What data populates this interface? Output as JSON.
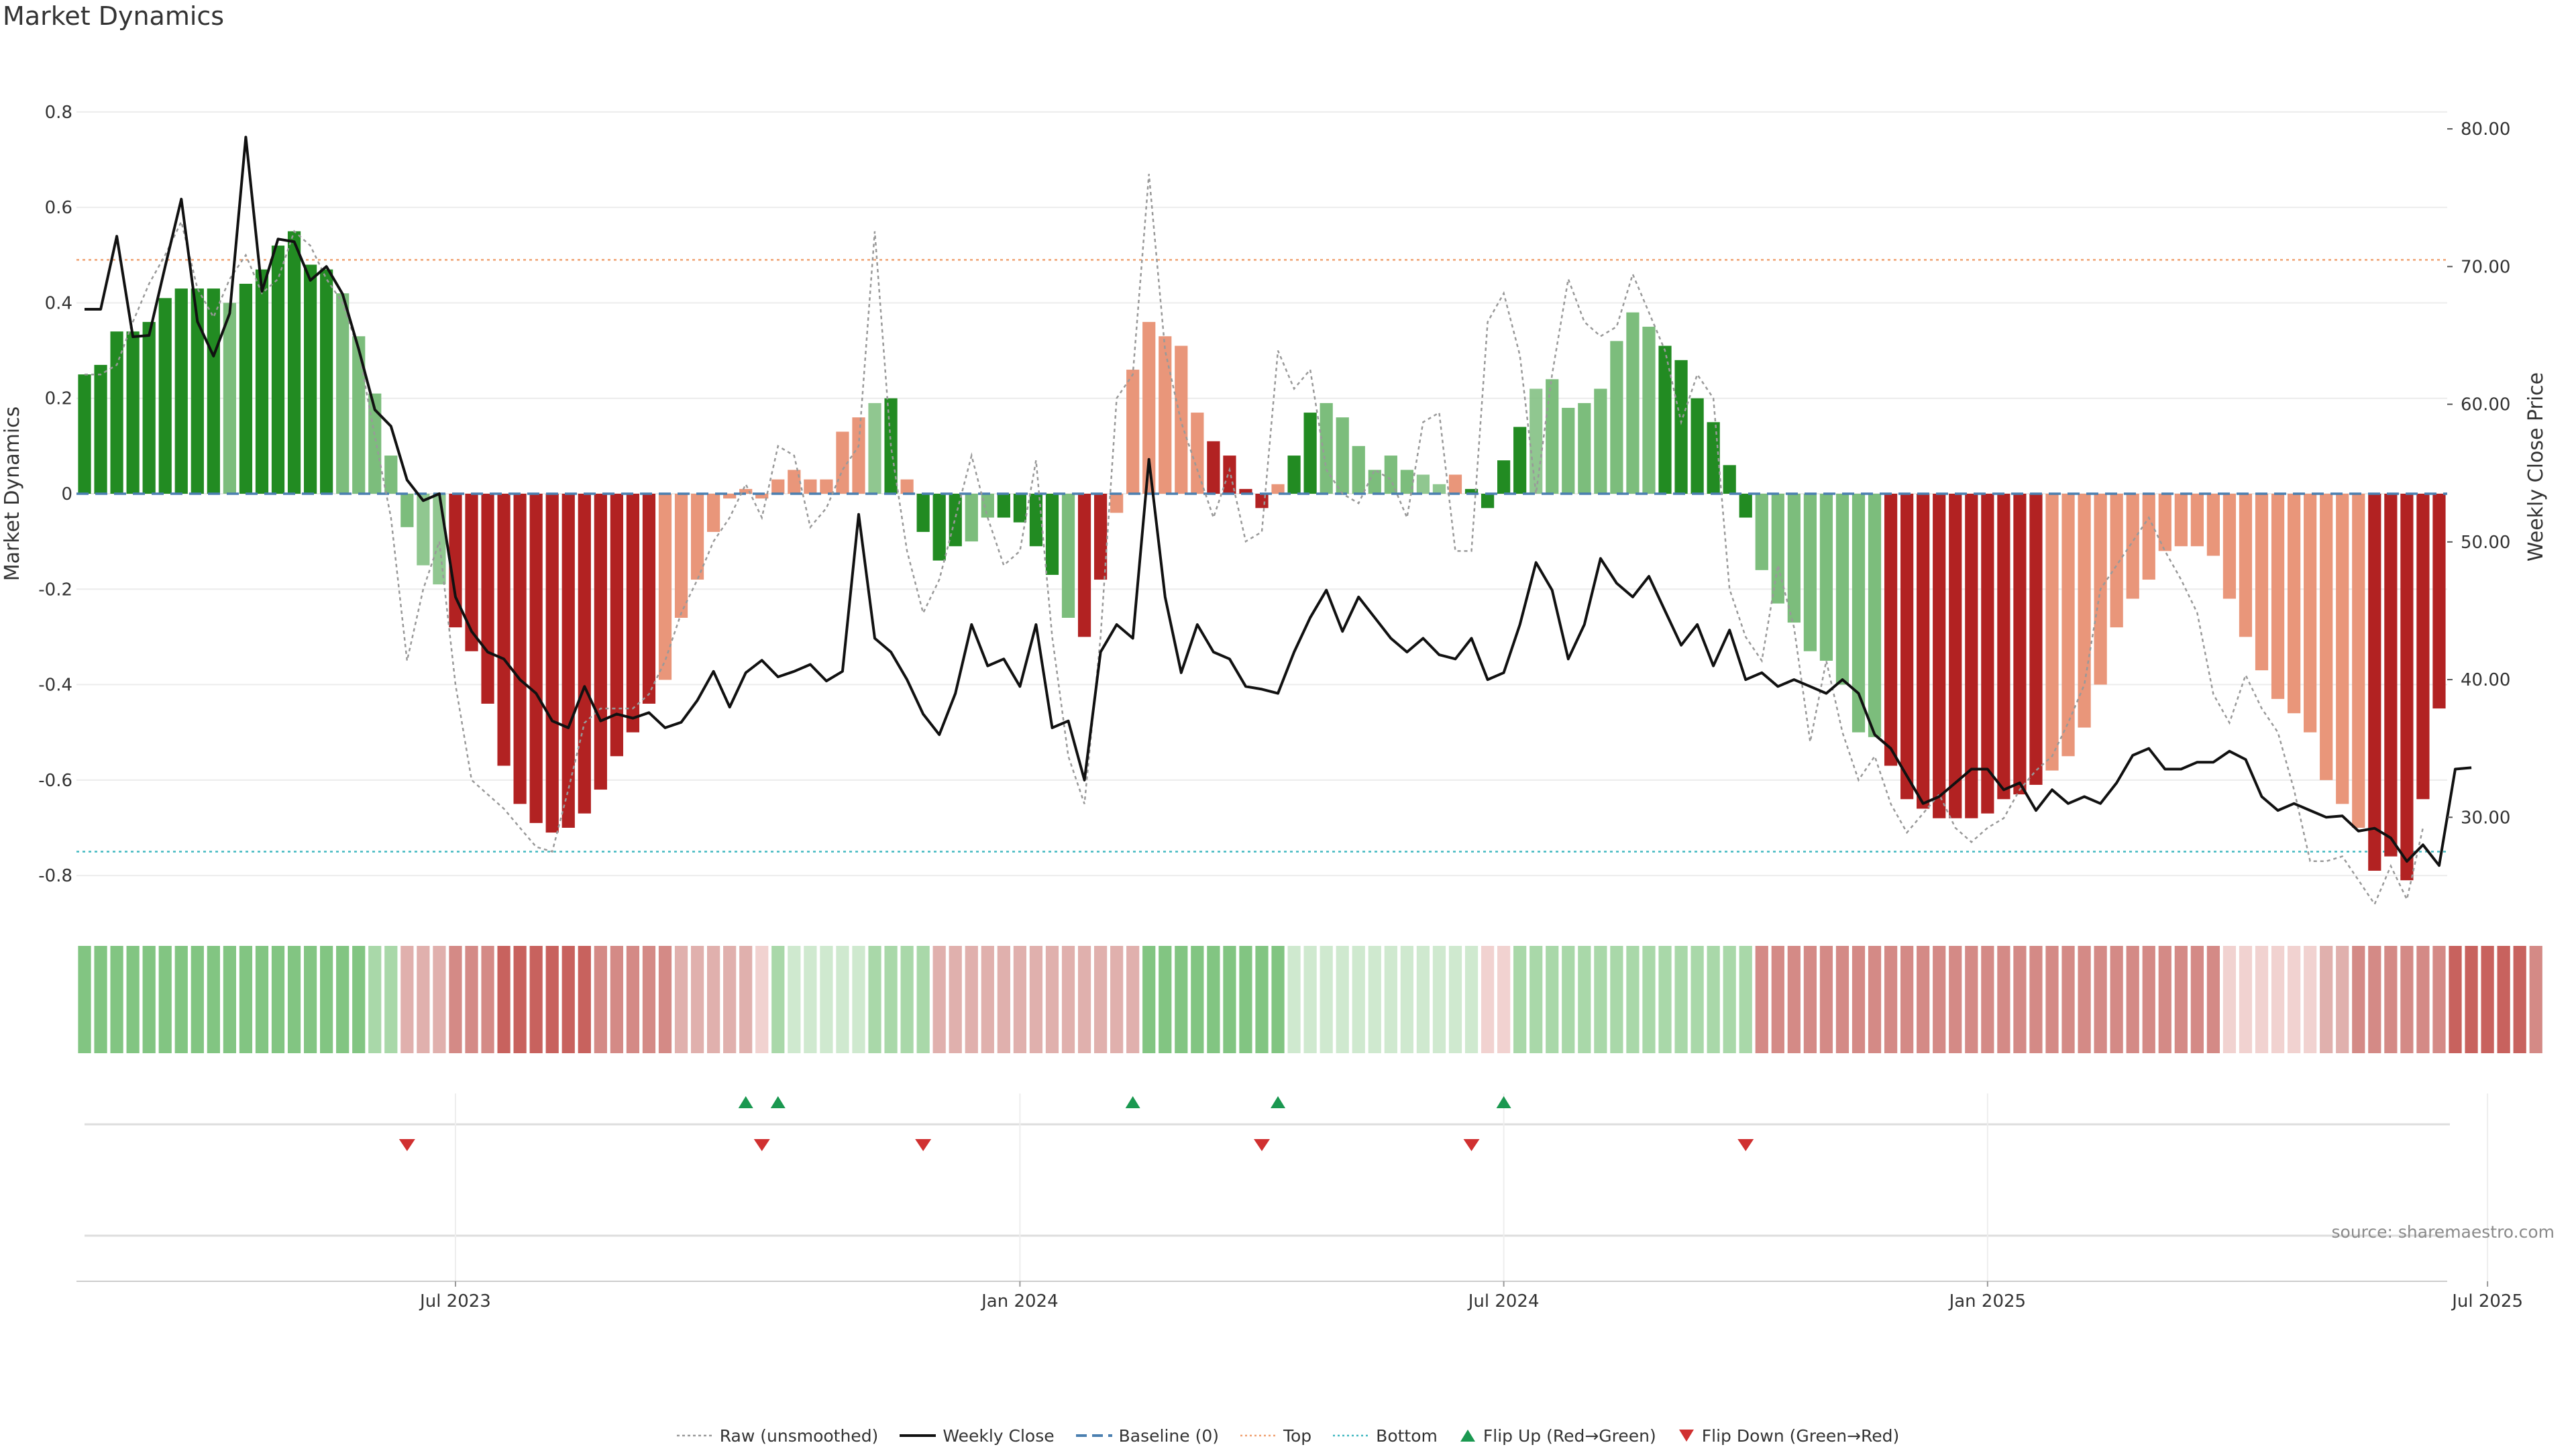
{
  "title": "Market Dynamics",
  "source": "source: sharemaestro.com",
  "chart_data": {
    "type": "bar+line",
    "title": "Market Dynamics",
    "ylabel_left": "Market Dynamics",
    "ylabel_right": "Weekly Close Price",
    "ylim_left": [
      -0.88,
      0.88
    ],
    "ylim_right": [
      23.0,
      84.0
    ],
    "left_ticks": [
      0.8,
      0.6,
      0.4,
      0.2,
      0,
      -0.2,
      -0.4,
      -0.6,
      -0.8
    ],
    "right_ticks": [
      "80.00",
      "70.00",
      "60.00",
      "50.00",
      "40.00",
      "30.00"
    ],
    "x_tick_labels": [
      "Jul 2023",
      "Jan 2024",
      "Jul 2024",
      "Jan 2025",
      "Jul 2025"
    ],
    "x_tick_index": [
      23,
      58,
      88,
      118,
      149
    ],
    "top_level": 0.49,
    "bottom_level": -0.75,
    "baseline": 0,
    "bar_color_codes": "GGGGGGGGGLGGGGGGlllllmmRRRRRRRRRRRRRrrrrrrrrrrrrrmGrGGGlLGGGGlRRrrrrrrRRRRrGGllllllmmrGGGGmlllllllGGGGGGllllllllRRRRRRRRRRrrrrrrrrrrrrrrrrrrrrRRRRRRRRRRRr",
    "dynamics": [
      0.25,
      0.27,
      0.34,
      0.34,
      0.36,
      0.41,
      0.43,
      0.43,
      0.43,
      0.4,
      0.44,
      0.47,
      0.52,
      0.55,
      0.48,
      0.47,
      0.42,
      0.33,
      0.21,
      0.08,
      -0.07,
      -0.15,
      -0.19,
      -0.28,
      -0.33,
      -0.44,
      -0.57,
      -0.65,
      -0.69,
      -0.71,
      -0.7,
      -0.67,
      -0.62,
      -0.55,
      -0.5,
      -0.44,
      -0.39,
      -0.26,
      -0.18,
      -0.08,
      -0.01,
      0.01,
      -0.01,
      0.03,
      0.05,
      0.03,
      0.03,
      0.13,
      0.16,
      0.19,
      0.2,
      0.03,
      -0.08,
      -0.14,
      -0.11,
      -0.1,
      -0.05,
      -0.05,
      -0.06,
      -0.11,
      -0.17,
      -0.26,
      -0.3,
      -0.18,
      -0.04,
      0.26,
      0.36,
      0.33,
      0.31,
      0.17,
      0.11,
      0.08,
      0.01,
      -0.03,
      0.02,
      0.08,
      0.17,
      0.19,
      0.16,
      0.1,
      0.05,
      0.08,
      0.05,
      0.04,
      0.02,
      0.04,
      0.01,
      -0.03,
      0.07,
      0.14,
      0.22,
      0.24,
      0.18,
      0.19,
      0.22,
      0.32,
      0.38,
      0.35,
      0.31,
      0.28,
      0.2,
      0.15,
      0.06,
      -0.05,
      -0.16,
      -0.23,
      -0.27,
      -0.33,
      -0.35,
      -0.4,
      -0.5,
      -0.51,
      -0.57,
      -0.64,
      -0.66,
      -0.68,
      -0.68,
      -0.68,
      -0.67,
      -0.64,
      -0.63,
      -0.61,
      -0.58,
      -0.55,
      -0.49,
      -0.4,
      -0.28,
      -0.22,
      -0.18,
      -0.12,
      -0.11,
      -0.11,
      -0.13,
      -0.22,
      -0.3,
      -0.37,
      -0.43,
      -0.46,
      -0.5,
      -0.6,
      -0.65,
      -0.7,
      -0.79,
      -0.76,
      -0.81,
      -0.64,
      -0.45
    ],
    "raw": [
      0.25,
      0.25,
      0.27,
      0.36,
      0.44,
      0.5,
      0.57,
      0.43,
      0.37,
      0.45,
      0.5,
      0.42,
      0.45,
      0.55,
      0.52,
      0.45,
      0.4,
      0.3,
      0.12,
      -0.05,
      -0.35,
      -0.2,
      -0.1,
      -0.4,
      -0.6,
      -0.63,
      -0.66,
      -0.7,
      -0.74,
      -0.75,
      -0.62,
      -0.48,
      -0.45,
      -0.45,
      -0.45,
      -0.42,
      -0.35,
      -0.25,
      -0.18,
      -0.1,
      -0.05,
      0.02,
      -0.05,
      0.1,
      0.08,
      -0.07,
      -0.03,
      0.05,
      0.1,
      0.55,
      0.1,
      -0.12,
      -0.25,
      -0.18,
      -0.05,
      0.08,
      -0.05,
      -0.15,
      -0.12,
      0.07,
      -0.3,
      -0.55,
      -0.65,
      -0.3,
      0.2,
      0.25,
      0.67,
      0.3,
      0.15,
      0.05,
      -0.05,
      0.05,
      -0.1,
      -0.08,
      0.3,
      0.22,
      0.26,
      0.05,
      0.0,
      -0.02,
      0.05,
      0.03,
      -0.05,
      0.15,
      0.17,
      -0.12,
      -0.12,
      0.36,
      0.42,
      0.29,
      0.0,
      0.25,
      0.45,
      0.36,
      0.33,
      0.35,
      0.46,
      0.38,
      0.3,
      0.15,
      0.25,
      0.2,
      -0.2,
      -0.3,
      -0.35,
      -0.15,
      -0.28,
      -0.52,
      -0.35,
      -0.5,
      -0.6,
      -0.55,
      -0.65,
      -0.71,
      -0.67,
      -0.63,
      -0.7,
      -0.73,
      -0.7,
      -0.68,
      -0.62,
      -0.58,
      -0.55,
      -0.48,
      -0.4,
      -0.2,
      -0.15,
      -0.1,
      -0.05,
      -0.12,
      -0.18,
      -0.25,
      -0.42,
      -0.48,
      -0.38,
      -0.45,
      -0.5,
      -0.62,
      -0.77,
      -0.77,
      -0.76,
      -0.81,
      -0.86,
      -0.78,
      -0.85,
      -0.7
    ],
    "weekly_close": [
      66.9,
      66.9,
      72.2,
      64.9,
      65.0,
      70.0,
      74.9,
      66.0,
      63.5,
      66.6,
      79.4,
      68.2,
      72.0,
      71.8,
      69.0,
      70.0,
      68.0,
      64.0,
      59.6,
      58.4,
      54.5,
      53.0,
      53.5,
      46.0,
      43.5,
      42.0,
      41.5,
      40.0,
      39.0,
      37.0,
      36.5,
      39.5,
      37.0,
      37.5,
      37.2,
      37.6,
      36.5,
      36.9,
      38.5,
      40.6,
      38.0,
      40.5,
      41.4,
      40.2,
      40.6,
      41.1,
      39.9,
      40.6,
      52.0,
      43.0,
      42.0,
      40.0,
      37.5,
      36.0,
      39.0,
      44.0,
      41.0,
      41.5,
      39.5,
      44.0,
      36.5,
      37.0,
      32.7,
      42.0,
      44.0,
      43.0,
      56.0,
      46.0,
      40.5,
      44.0,
      42.0,
      41.5,
      39.5,
      39.3,
      39.0,
      42.0,
      44.5,
      46.5,
      43.5,
      46.0,
      44.5,
      43.0,
      42.0,
      43.0,
      41.8,
      41.5,
      43.0,
      40.0,
      40.5,
      44.0,
      48.5,
      46.5,
      41.5,
      44.0,
      48.8,
      47.0,
      46.0,
      47.5,
      45.0,
      42.5,
      44.0,
      41.0,
      43.6,
      40.0,
      40.5,
      39.5,
      40.0,
      39.5,
      39.0,
      40.0,
      39.0,
      36.0,
      35.0,
      33.0,
      31.0,
      31.5,
      32.5,
      33.5,
      33.5,
      32.0,
      32.5,
      30.5,
      32.0,
      31.0,
      31.5,
      31.0,
      32.5,
      34.5,
      35.0,
      33.5,
      33.5,
      34.0,
      34.0,
      34.8,
      34.2,
      31.5,
      30.5,
      31.0,
      30.5,
      30.0,
      30.1,
      29.0,
      29.2,
      28.5,
      26.8,
      28.0,
      26.5,
      33.5,
      33.6
    ],
    "status_strip": [
      "Mg",
      "Mg",
      "Mg",
      "Mg",
      "Mg",
      "Mg",
      "Mg",
      "Mg",
      "Mg",
      "Mg",
      "Mg",
      "Mg",
      "Mg",
      "Mg",
      "Mg",
      "Mg",
      "Mg",
      "Mg",
      "Lg",
      "Lg",
      "Lr",
      "Lr",
      "Lr",
      "Mr",
      "Mr",
      "Mr",
      "Sr",
      "Sr",
      "Sr",
      "Sr",
      "Sr",
      "Sr",
      "Mr",
      "Mr",
      "Mr",
      "Mr",
      "Mr",
      "Lr",
      "Lr",
      "Lr",
      "Lr",
      "Lr",
      "Vr",
      "Lg",
      "Vg",
      "Vg",
      "Vg",
      "Vg",
      "Vg",
      "Lg",
      "Lg",
      "Lg",
      "Lg",
      "Lr",
      "Lr",
      "Lr",
      "Lr",
      "Lr",
      "Lr",
      "Lr",
      "Lr",
      "Lr",
      "Lr",
      "Lr",
      "Lr",
      "Lr",
      "Mg",
      "Mg",
      "Mg",
      "Mg",
      "Mg",
      "Mg",
      "Mg",
      "Mg",
      "Mg",
      "Vg",
      "Vg",
      "Vg",
      "Vg",
      "Vg",
      "Vg",
      "Vg",
      "Vg",
      "Vg",
      "Vg",
      "Vg",
      "Vg",
      "Vr",
      "Vr",
      "Lg",
      "Lg",
      "Lg",
      "Lg",
      "Lg",
      "Lg",
      "Lg",
      "Lg",
      "Lg",
      "Lg",
      "Lg",
      "Lg",
      "Lg",
      "Lg",
      "Lg",
      "Mr",
      "Mr",
      "Mr",
      "Mr",
      "Mr",
      "Mr",
      "Mr",
      "Mr",
      "Mr",
      "Mr",
      "Mr",
      "Mr",
      "Mr",
      "Mr",
      "Mr",
      "Mr",
      "Mr",
      "Mr",
      "Mr",
      "Mr",
      "Mr",
      "Mr",
      "Mr",
      "Mr",
      "Mr",
      "Mr",
      "Mr",
      "Mr",
      "Mr",
      "Vr",
      "Vr",
      "Vr",
      "Vr",
      "Vr",
      "Vr",
      "Lr",
      "Lr",
      "Mr",
      "Mr",
      "Mr",
      "Mr",
      "Mr",
      "Mr",
      "Sr",
      "Sr",
      "Sr",
      "Sr",
      "Sr",
      "Mr"
    ],
    "flip_up_index": [
      41,
      43,
      65,
      74,
      88
    ],
    "flip_down_index": [
      20,
      42,
      52,
      73,
      86,
      103
    ]
  },
  "legend": [
    {
      "key": "raw",
      "label": "Raw (unsmoothed)"
    },
    {
      "key": "close",
      "label": "Weekly Close"
    },
    {
      "key": "baseline",
      "label": "Baseline (0)"
    },
    {
      "key": "top",
      "label": "Top"
    },
    {
      "key": "bottom",
      "label": "Bottom"
    },
    {
      "key": "flipup",
      "label": "Flip Up (Red→Green)"
    },
    {
      "key": "flipdown",
      "label": "Flip Down (Green→Red)"
    }
  ],
  "colors": {
    "strong_green": "#228b22",
    "light_green": "#7cbd7c",
    "strong_red": "#b22222",
    "light_red": "#e9967a",
    "close_line": "#111111",
    "raw_line": "#999999",
    "baseline": "#4a7fb0",
    "top": "#f0a070",
    "bottom": "#40b8c0",
    "flip_up": "#1a9850",
    "flip_down": "#d03030"
  }
}
